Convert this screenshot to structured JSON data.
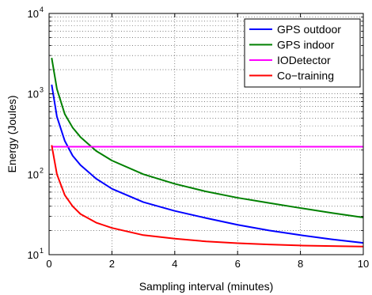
{
  "chart_data": {
    "type": "line",
    "xlabel": "Sampling interval (minutes)",
    "ylabel": "Energy (Joules)",
    "xlim": [
      0,
      10
    ],
    "ylim": [
      10,
      10000
    ],
    "yscale": "log",
    "grid": true,
    "legend_position": "top-right",
    "x_ticks": [
      "0",
      "2",
      "4",
      "6",
      "8",
      "10"
    ],
    "y_ticks": [
      {
        "base": "10",
        "exp": "1"
      },
      {
        "base": "10",
        "exp": "2"
      },
      {
        "base": "10",
        "exp": "3"
      },
      {
        "base": "10",
        "exp": "4"
      }
    ],
    "series": [
      {
        "name": "GPS outdoor",
        "color": "#0000ff",
        "x": [
          0.083,
          0.25,
          0.5,
          0.75,
          1,
          1.5,
          2,
          3,
          4,
          5,
          6,
          7,
          8,
          9,
          10
        ],
        "y": [
          1300,
          520,
          260,
          170,
          130,
          88,
          66,
          45,
          35,
          28.5,
          23.5,
          20,
          17.5,
          15.5,
          14
        ]
      },
      {
        "name": "GPS indoor",
        "color": "#008000",
        "x": [
          0.083,
          0.25,
          0.5,
          0.75,
          1,
          1.5,
          2,
          3,
          4,
          5,
          6,
          7,
          8,
          9,
          10
        ],
        "y": [
          2800,
          1150,
          560,
          380,
          290,
          195,
          148,
          100,
          76,
          61,
          51,
          44,
          38,
          33,
          29
        ]
      },
      {
        "name": "IODetector",
        "color": "#ff00ff",
        "x": [
          0.083,
          10
        ],
        "y": [
          220,
          220
        ]
      },
      {
        "name": "Co−training",
        "color": "#ff0000",
        "x": [
          0.083,
          0.25,
          0.5,
          0.75,
          1,
          1.5,
          2,
          3,
          4,
          5,
          6,
          7,
          8,
          9,
          10
        ],
        "y": [
          230,
          100,
          55,
          40,
          32,
          25,
          21.5,
          17.5,
          15.8,
          14.6,
          13.9,
          13.4,
          13,
          12.8,
          12.6
        ]
      }
    ]
  }
}
